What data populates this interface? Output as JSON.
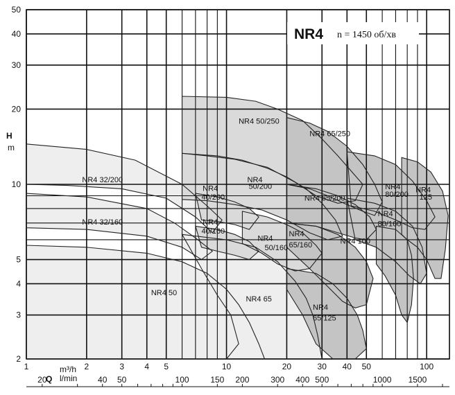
{
  "chart_data": {
    "type": "area",
    "title": "NR4",
    "subtitle": "n = 1450 об/хв",
    "ylabel_top": "H",
    "ylabel_bottom": "m",
    "xlabel_q": "Q",
    "xunit_top": "m³/h",
    "xunit_bottom": "l/min",
    "log_x": true,
    "log_y": true,
    "xlim_m3h": [
      1,
      130
    ],
    "ylim": [
      2,
      50
    ],
    "y_ticks": [
      2,
      3,
      4,
      5,
      10,
      20,
      30,
      40,
      50
    ],
    "x_ticks_m3h": [
      1,
      2,
      3,
      4,
      5,
      10,
      20,
      30,
      40,
      50,
      100
    ],
    "x_ticks_lmin": [
      20,
      40,
      50,
      100,
      150,
      200,
      300,
      400,
      500,
      1000,
      1500
    ],
    "grid": true,
    "colors": {
      "grid": "#111111",
      "fill_light": "#eeeeee",
      "fill_mid": "#dadada",
      "fill_dark": "#c4c4c4",
      "curve": "#222222"
    },
    "series": [
      {
        "name": "NR4 32/200",
        "shade": "fill_light",
        "region": [
          [
            1,
            14.5
          ],
          [
            2,
            13.8
          ],
          [
            3.5,
            12.5
          ],
          [
            6,
            10
          ],
          [
            8,
            8.2
          ],
          [
            9.5,
            7.2
          ],
          [
            8.5,
            6.4
          ],
          [
            7,
            7.4
          ],
          [
            5,
            8.8
          ],
          [
            3,
            9.6
          ],
          [
            1.6,
            9.9
          ],
          [
            1,
            10
          ]
        ]
      },
      {
        "name": "NR4 32/160",
        "shade": "fill_light",
        "region": [
          [
            1,
            9.2
          ],
          [
            2,
            8.9
          ],
          [
            4,
            8
          ],
          [
            5.5,
            7
          ],
          [
            7,
            6.1
          ],
          [
            8.5,
            5.4
          ],
          [
            7.5,
            5
          ],
          [
            6,
            5.6
          ],
          [
            4,
            6.2
          ],
          [
            2,
            6.6
          ],
          [
            1,
            6.7
          ]
        ]
      },
      {
        "name": "NR4 50",
        "shade": "fill_light",
        "region": [
          [
            1,
            5.7
          ],
          [
            2,
            5.6
          ],
          [
            4,
            5.3
          ],
          [
            6,
            4.9
          ],
          [
            8,
            4.4
          ],
          [
            10,
            3.8
          ],
          [
            11.5,
            3.3
          ],
          [
            13,
            2.8
          ],
          [
            14.5,
            2.3
          ],
          [
            15.5,
            2
          ],
          [
            1,
            2
          ]
        ]
      },
      {
        "name": "NR4 65",
        "shade": "fill_light",
        "region": [
          [
            6,
            6.3
          ],
          [
            10,
            6
          ],
          [
            14,
            5.6
          ],
          [
            18,
            4.9
          ],
          [
            22,
            4.1
          ],
          [
            25,
            3.5
          ],
          [
            27,
            3
          ],
          [
            28.5,
            2.5
          ],
          [
            30,
            2
          ],
          [
            10,
            2
          ],
          [
            11.5,
            2.3
          ],
          [
            10.5,
            3
          ],
          [
            9,
            3.6
          ],
          [
            7.5,
            4.6
          ]
        ]
      },
      {
        "name": "NR4 40/200",
        "shade": "fill_mid",
        "region": [
          [
            7,
            9.2
          ],
          [
            9,
            8.9
          ],
          [
            11,
            8.5
          ],
          [
            13,
            8
          ],
          [
            14.5,
            7.4
          ],
          [
            13,
            6.6
          ],
          [
            11,
            6.9
          ],
          [
            9,
            7.1
          ],
          [
            7.5,
            7.2
          ]
        ]
      },
      {
        "name": "NR4 40/160",
        "shade": "fill_mid",
        "region": [
          [
            7,
            6.8
          ],
          [
            9,
            6.6
          ],
          [
            11,
            6.3
          ],
          [
            13,
            5.9
          ],
          [
            14.5,
            5.4
          ],
          [
            13,
            5
          ],
          [
            11,
            5.2
          ],
          [
            9,
            5.4
          ],
          [
            7.5,
            5.6
          ]
        ]
      },
      {
        "name": "NR4 50/250",
        "shade": "fill_mid",
        "region": [
          [
            6,
            22.5
          ],
          [
            10,
            22.3
          ],
          [
            14,
            21.5
          ],
          [
            18,
            20
          ],
          [
            24,
            18
          ],
          [
            30,
            15.2
          ],
          [
            36,
            13
          ],
          [
            42,
            11.3
          ],
          [
            48,
            10
          ],
          [
            44,
            8.6
          ],
          [
            36,
            8.4
          ],
          [
            28,
            9
          ],
          [
            22,
            10.2
          ],
          [
            16,
            11.7
          ],
          [
            11,
            12.6
          ],
          [
            8,
            13
          ],
          [
            6,
            13.3
          ]
        ]
      },
      {
        "name": "NR4 50/200",
        "shade": "fill_mid",
        "region": [
          [
            6,
            13.3
          ],
          [
            9,
            13
          ],
          [
            12,
            12.5
          ],
          [
            16,
            11.6
          ],
          [
            20,
            10.7
          ],
          [
            25,
            9.6
          ],
          [
            30,
            8.4
          ],
          [
            35,
            7.2
          ],
          [
            38,
            6.2
          ],
          [
            32,
            6
          ],
          [
            26,
            6.4
          ],
          [
            20,
            7.2
          ],
          [
            15,
            7.9
          ],
          [
            11,
            8.3
          ],
          [
            8,
            8.6
          ],
          [
            6,
            8.7
          ]
        ]
      },
      {
        "name": "NR4 50/160",
        "shade": "fill_mid",
        "region": [
          [
            12,
            7.8
          ],
          [
            16,
            7.4
          ],
          [
            20,
            6.9
          ],
          [
            24,
            6.4
          ],
          [
            28,
            5.7
          ],
          [
            30,
            5.3
          ],
          [
            26,
            4.6
          ],
          [
            22,
            4.5
          ],
          [
            18,
            4.8
          ],
          [
            15,
            5.3
          ],
          [
            12,
            5.8
          ]
        ]
      },
      {
        "name": "NR4 65/250",
        "shade": "fill_dark",
        "region": [
          [
            20,
            18.5
          ],
          [
            26,
            17.6
          ],
          [
            32,
            16.3
          ],
          [
            40,
            14.2
          ],
          [
            48,
            12
          ],
          [
            55,
            10
          ],
          [
            60,
            8.5
          ],
          [
            55,
            7.5
          ],
          [
            48,
            7.8
          ],
          [
            40,
            8.3
          ],
          [
            32,
            9
          ],
          [
            26,
            9.6
          ],
          [
            20,
            10
          ]
        ]
      },
      {
        "name": "NR4 65/200",
        "shade": "fill_dark",
        "region": [
          [
            20,
            10
          ],
          [
            28,
            9.6
          ],
          [
            36,
            9
          ],
          [
            44,
            8.3
          ],
          [
            52,
            7.4
          ],
          [
            56,
            6.6
          ],
          [
            50,
            6
          ],
          [
            44,
            6.1
          ],
          [
            36,
            6.4
          ],
          [
            28,
            6.8
          ],
          [
            20,
            7
          ]
        ]
      },
      {
        "name": "NR4 65/160",
        "shade": "fill_dark",
        "region": [
          [
            20,
            7
          ],
          [
            28,
            6.8
          ],
          [
            36,
            6.3
          ],
          [
            44,
            5.6
          ],
          [
            50,
            4.9
          ],
          [
            54,
            4.2
          ],
          [
            50,
            3.3
          ],
          [
            44,
            3.2
          ],
          [
            38,
            3.4
          ],
          [
            32,
            3.9
          ],
          [
            26,
            4.6
          ],
          [
            20,
            5.6
          ]
        ]
      },
      {
        "name": "NR4 65/125",
        "shade": "fill_dark",
        "region": [
          [
            20,
            4.6
          ],
          [
            28,
            4.4
          ],
          [
            34,
            4
          ],
          [
            40,
            3.5
          ],
          [
            45,
            3
          ],
          [
            48,
            2.6
          ],
          [
            50,
            2.2
          ],
          [
            44,
            2
          ],
          [
            34,
            2
          ],
          [
            28,
            2.3
          ],
          [
            24,
            3
          ],
          [
            20,
            3.8
          ]
        ]
      },
      {
        "name": "NR4 80/200",
        "shade": "fill_dark",
        "region": [
          [
            40,
            13.5
          ],
          [
            55,
            13
          ],
          [
            70,
            12
          ],
          [
            85,
            10.3
          ],
          [
            100,
            8.6
          ],
          [
            110,
            7.4
          ],
          [
            98,
            6.6
          ],
          [
            85,
            6.7
          ],
          [
            70,
            7.2
          ],
          [
            55,
            7.8
          ],
          [
            42,
            8.2
          ]
        ]
      },
      {
        "name": "NR4 80/160",
        "shade": "fill_dark",
        "region": [
          [
            40,
            8.8
          ],
          [
            55,
            8.4
          ],
          [
            70,
            7.8
          ],
          [
            85,
            6.8
          ],
          [
            95,
            5.6
          ],
          [
            100,
            4.4
          ],
          [
            93,
            4
          ],
          [
            82,
            4.3
          ],
          [
            70,
            4.9
          ],
          [
            56,
            5.6
          ],
          [
            44,
            6
          ]
        ]
      },
      {
        "name": "NR4 100",
        "shade": "fill_dark",
        "region": [
          [
            56,
            6.8
          ],
          [
            70,
            6.6
          ],
          [
            80,
            6
          ],
          [
            84,
            5.2
          ],
          [
            86,
            4.2
          ],
          [
            84,
            3.3
          ],
          [
            80,
            2.8
          ],
          [
            75,
            3
          ],
          [
            70,
            3.6
          ],
          [
            62,
            4.3
          ],
          [
            56,
            4.8
          ]
        ]
      },
      {
        "name": "NR4 125",
        "shade": "fill_dark",
        "region": [
          [
            75,
            12.8
          ],
          [
            90,
            12.3
          ],
          [
            105,
            11.2
          ],
          [
            120,
            9.4
          ],
          [
            128,
            7.5
          ],
          [
            124,
            5.5
          ],
          [
            118,
            4.2
          ],
          [
            110,
            4.2
          ],
          [
            100,
            5
          ],
          [
            90,
            5.6
          ],
          [
            80,
            6
          ],
          [
            75,
            6.3
          ]
        ]
      }
    ],
    "label_positions": [
      {
        "text": "NR4 32/200",
        "q": 1.9,
        "h": 10.2
      },
      {
        "text": "NR4 32/160",
        "q": 1.9,
        "h": 6.9
      },
      {
        "text": "NR4 50",
        "q": 4.2,
        "h": 3.6
      },
      {
        "text": "NR4 65",
        "q": 12.5,
        "h": 3.4
      },
      {
        "text": "NR4",
        "q": 7.6,
        "h": 9.4
      },
      {
        "text": "40/200",
        "q": 7.5,
        "h": 8.7
      },
      {
        "text": "NR4",
        "q": 7.6,
        "h": 6.9
      },
      {
        "text": "40/160",
        "q": 7.5,
        "h": 6.35
      },
      {
        "text": "NR4 50/250",
        "q": 11.5,
        "h": 17.5
      },
      {
        "text": "NR4",
        "q": 12.7,
        "h": 10.2
      },
      {
        "text": "50/200",
        "q": 12.9,
        "h": 9.6
      },
      {
        "text": "NR4",
        "q": 14.3,
        "h": 5.95
      },
      {
        "text": "50/160",
        "q": 15.5,
        "h": 5.45
      },
      {
        "text": "NR4 65/250",
        "q": 26,
        "h": 15.6
      },
      {
        "text": "NR4 65/200",
        "q": 24.5,
        "h": 8.6
      },
      {
        "text": "NR4",
        "q": 20.5,
        "h": 6.2
      },
      {
        "text": "65/160",
        "q": 20.5,
        "h": 5.6
      },
      {
        "text": "NR4",
        "q": 27,
        "h": 3.15
      },
      {
        "text": "65/125",
        "q": 27,
        "h": 2.85
      },
      {
        "text": "NR4",
        "q": 62,
        "h": 9.55
      },
      {
        "text": "80/200",
        "q": 62,
        "h": 8.9
      },
      {
        "text": "NR4",
        "q": 57,
        "h": 7.45
      },
      {
        "text": "80/160",
        "q": 57,
        "h": 6.8
      },
      {
        "text": "NR4 100",
        "q": 37,
        "h": 5.8
      },
      {
        "text": "NR4",
        "q": 88,
        "h": 9.3
      },
      {
        "text": "125",
        "q": 92,
        "h": 8.7
      }
    ]
  }
}
